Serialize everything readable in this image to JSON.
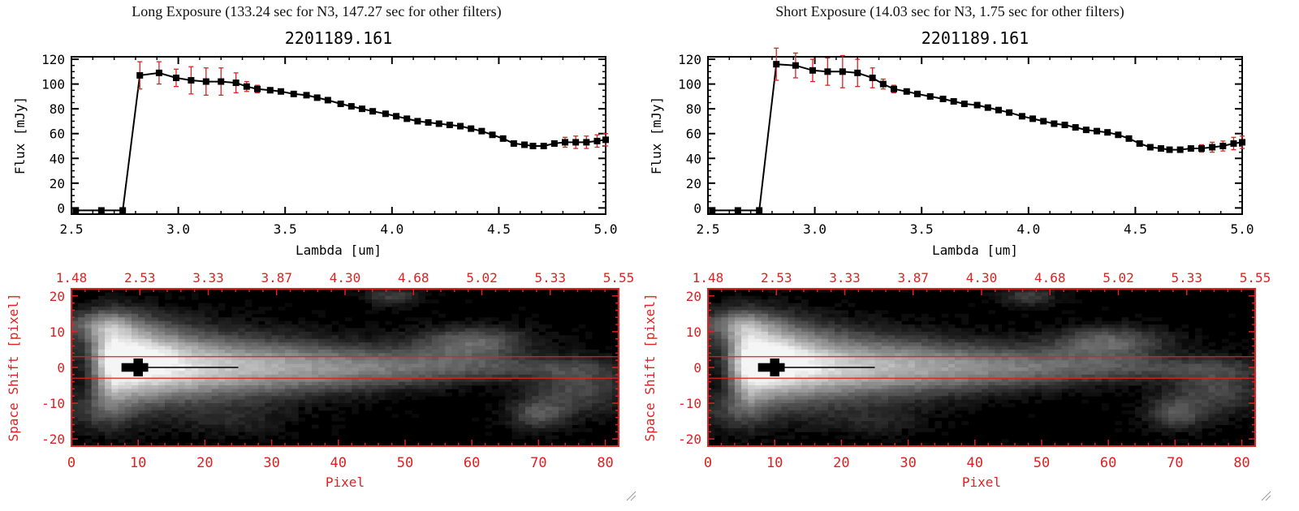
{
  "panels": [
    {
      "heading": "Long Exposure (133.24 sec for N3, 147.27 sec for other filters)",
      "spectrum": {
        "type": "line",
        "title": "2201189.161",
        "xlabel": "Lambda [um]",
        "ylabel": "Flux [mJy]",
        "xlim": [
          2.5,
          5.0
        ],
        "ylim": [
          -5,
          122
        ],
        "xticks": [
          "2.5",
          "3.0",
          "3.5",
          "4.0",
          "4.5",
          "5.0"
        ],
        "yticks": [
          "0",
          "20",
          "40",
          "60",
          "80",
          "100",
          "120"
        ],
        "x": [
          2.52,
          2.64,
          2.74,
          2.82,
          2.91,
          2.99,
          3.06,
          3.13,
          3.2,
          3.27,
          3.32,
          3.37,
          3.43,
          3.48,
          3.54,
          3.6,
          3.65,
          3.7,
          3.76,
          3.81,
          3.86,
          3.91,
          3.97,
          4.02,
          4.07,
          4.12,
          4.17,
          4.22,
          4.27,
          4.32,
          4.37,
          4.42,
          4.47,
          4.52,
          4.57,
          4.62,
          4.66,
          4.71,
          4.76,
          4.81,
          4.86,
          4.91,
          4.96,
          5.0
        ],
        "y": [
          -2,
          -2,
          -2,
          107,
          109,
          105,
          103,
          102,
          102,
          101,
          98,
          96,
          95,
          94,
          92,
          91,
          89,
          87,
          84,
          82,
          80,
          78,
          76,
          74,
          72,
          70,
          69,
          68,
          67,
          66,
          64,
          62,
          59,
          56,
          52,
          51,
          50,
          50,
          52,
          53,
          53,
          53,
          54,
          55
        ],
        "yerr": [
          1,
          1,
          1,
          11,
          9,
          7,
          11,
          11,
          11,
          8,
          4,
          3,
          2,
          2,
          2,
          2,
          2,
          2,
          2,
          2,
          2,
          2,
          2,
          2,
          2,
          2,
          2,
          2,
          2,
          2,
          2,
          2,
          2,
          2,
          2,
          2,
          2,
          2,
          2,
          4,
          5,
          5,
          5,
          5
        ],
        "line_color": "#000000",
        "error_color": "#dd2222"
      },
      "image": {
        "type": "heatmap",
        "xlabel": "Pixel",
        "ylabel": "Space Shift [pixel]",
        "xlim": [
          0,
          82
        ],
        "ylim": [
          -22,
          22
        ],
        "xticks": [
          "0",
          "10",
          "20",
          "30",
          "40",
          "50",
          "60",
          "70",
          "80"
        ],
        "yticks": [
          "-20",
          "-10",
          "0",
          "10",
          "20"
        ],
        "top_axis_ticks": [
          "1.48",
          "2.53",
          "3.33",
          "3.87",
          "4.30",
          "4.68",
          "5.02",
          "5.33",
          "5.55"
        ],
        "aperture_rows": [
          -3,
          3
        ],
        "axis_color": "#dd2222"
      }
    },
    {
      "heading": "Short Exposure (14.03 sec for N3, 1.75 sec for other filters)",
      "spectrum": {
        "type": "line",
        "title": "2201189.161",
        "xlabel": "Lambda [um]",
        "ylabel": "Flux [mJy]",
        "xlim": [
          2.5,
          5.0
        ],
        "ylim": [
          -5,
          122
        ],
        "xticks": [
          "2.5",
          "3.0",
          "3.5",
          "4.0",
          "4.5",
          "5.0"
        ],
        "yticks": [
          "0",
          "20",
          "40",
          "60",
          "80",
          "100",
          "120"
        ],
        "x": [
          2.52,
          2.64,
          2.74,
          2.82,
          2.91,
          2.99,
          3.06,
          3.13,
          3.2,
          3.27,
          3.32,
          3.37,
          3.43,
          3.48,
          3.54,
          3.6,
          3.65,
          3.7,
          3.76,
          3.81,
          3.86,
          3.91,
          3.97,
          4.02,
          4.07,
          4.12,
          4.17,
          4.22,
          4.27,
          4.32,
          4.37,
          4.42,
          4.47,
          4.52,
          4.57,
          4.62,
          4.66,
          4.71,
          4.76,
          4.81,
          4.86,
          4.91,
          4.96,
          5.0
        ],
        "y": [
          -2,
          -2,
          -2,
          116,
          115,
          111,
          110,
          110,
          109,
          105,
          100,
          96,
          94,
          92,
          90,
          88,
          86,
          84,
          83,
          81,
          79,
          77,
          74,
          72,
          70,
          68,
          67,
          65,
          63,
          62,
          61,
          59,
          56,
          52,
          49,
          48,
          47,
          47,
          48,
          48,
          49,
          50,
          52,
          53
        ],
        "yerr": [
          1,
          1,
          1,
          13,
          10,
          9,
          11,
          13,
          11,
          8,
          4,
          3,
          2,
          2,
          2,
          2,
          2,
          2,
          2,
          2,
          2,
          2,
          2,
          2,
          2,
          2,
          2,
          2,
          2,
          2,
          2,
          2,
          2,
          2,
          2,
          2,
          2,
          2,
          2,
          3,
          4,
          4,
          5,
          5
        ],
        "line_color": "#000000",
        "error_color": "#dd2222"
      },
      "image": {
        "type": "heatmap",
        "xlabel": "Pixel",
        "ylabel": "Space Shift [pixel]",
        "xlim": [
          0,
          82
        ],
        "ylim": [
          -22,
          22
        ],
        "xticks": [
          "0",
          "10",
          "20",
          "30",
          "40",
          "50",
          "60",
          "70",
          "80"
        ],
        "yticks": [
          "-20",
          "-10",
          "0",
          "10",
          "20"
        ],
        "top_axis_ticks": [
          "1.48",
          "2.53",
          "3.33",
          "3.87",
          "4.30",
          "4.68",
          "5.02",
          "5.33",
          "5.55"
        ],
        "aperture_rows": [
          -3,
          3
        ],
        "axis_color": "#dd2222"
      }
    }
  ]
}
